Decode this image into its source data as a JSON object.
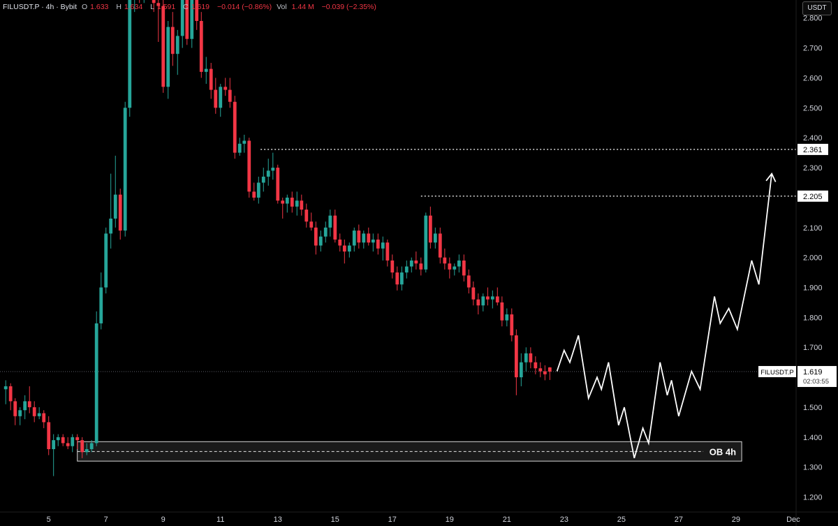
{
  "header": {
    "symbol": "FILUSDT.P · 4h · Bybit",
    "open_label": "O",
    "open": "1.633",
    "high_label": "H",
    "high": "1.634",
    "low_label": "L",
    "low": "1.591",
    "close_label": "C",
    "close": "1.619",
    "change": "−0.014 (−0.86%)",
    "vol_label": "Vol",
    "vol": "1.44 M",
    "vol_change": "−0.039 (−2.35%)"
  },
  "currency": "USDT",
  "colors": {
    "background": "#000000",
    "up": "#26a69a",
    "down": "#f23645",
    "projection": "#ffffff",
    "level_line": "#ffffff",
    "axis_text": "#d1d4dc"
  },
  "chart_data": {
    "type": "candlestick",
    "y_ticks": [
      "1.200",
      "1.300",
      "1.400",
      "1.500",
      "1.600",
      "1.700",
      "1.800",
      "1.900",
      "2.000",
      "2.100",
      "2.200",
      "2.300",
      "2.400",
      "2.500",
      "2.600",
      "2.700",
      "2.800"
    ],
    "ylim": [
      1.15,
      2.86
    ],
    "x_ticks": [
      {
        "label": "5",
        "day": 5
      },
      {
        "label": "7",
        "day": 7
      },
      {
        "label": "9",
        "day": 9
      },
      {
        "label": "11",
        "day": 11
      },
      {
        "label": "13",
        "day": 13
      },
      {
        "label": "15",
        "day": 15
      },
      {
        "label": "17",
        "day": 17
      },
      {
        "label": "19",
        "day": 19
      },
      {
        "label": "21",
        "day": 21
      },
      {
        "label": "23",
        "day": 23
      },
      {
        "label": "25",
        "day": 25
      },
      {
        "label": "27",
        "day": 27
      },
      {
        "label": "29",
        "day": 29
      },
      {
        "label": "Dec",
        "day": 31
      }
    ],
    "xlim": [
      3.3,
      31.1
    ],
    "price_labels": [
      {
        "name": "level-2361",
        "value": 2.361,
        "text": "2.361"
      },
      {
        "name": "level-2205",
        "value": 2.205,
        "text": "2.205"
      },
      {
        "name": "current-price",
        "value": 1.619,
        "text": "1.619",
        "symbol": "FILUSDT.P",
        "countdown": "02:03:55"
      }
    ],
    "levels": [
      {
        "name": "resistance-2361",
        "value": 2.361,
        "from_day": 12.4
      },
      {
        "name": "resistance-2205",
        "value": 2.205,
        "from_day": 18.0
      }
    ],
    "order_block": {
      "label": "OB 4h",
      "low": 1.32,
      "high": 1.385,
      "mid": 1.352,
      "from_day": 6.0,
      "to_day": 29.2
    },
    "projection": [
      [
        22.75,
        1.62
      ],
      [
        23.0,
        1.69
      ],
      [
        23.2,
        1.65
      ],
      [
        23.5,
        1.74
      ],
      [
        23.85,
        1.53
      ],
      [
        24.15,
        1.6
      ],
      [
        24.3,
        1.56
      ],
      [
        24.55,
        1.65
      ],
      [
        24.9,
        1.44
      ],
      [
        25.1,
        1.5
      ],
      [
        25.45,
        1.33
      ],
      [
        25.75,
        1.43
      ],
      [
        25.95,
        1.38
      ],
      [
        26.35,
        1.65
      ],
      [
        26.6,
        1.54
      ],
      [
        26.75,
        1.59
      ],
      [
        27.0,
        1.47
      ],
      [
        27.45,
        1.62
      ],
      [
        27.75,
        1.56
      ],
      [
        28.25,
        1.87
      ],
      [
        28.45,
        1.78
      ],
      [
        28.75,
        1.83
      ],
      [
        29.05,
        1.76
      ],
      [
        29.55,
        1.99
      ],
      [
        29.8,
        1.91
      ],
      [
        30.25,
        2.28
      ]
    ],
    "candles": [
      [
        3.5,
        1.56,
        1.59,
        1.51,
        1.57
      ],
      [
        3.67,
        1.57,
        1.58,
        1.49,
        1.52
      ],
      [
        3.83,
        1.52,
        1.53,
        1.44,
        1.47
      ],
      [
        4.0,
        1.47,
        1.5,
        1.44,
        1.49
      ],
      [
        4.17,
        1.49,
        1.54,
        1.46,
        1.52
      ],
      [
        4.33,
        1.52,
        1.57,
        1.48,
        1.5
      ],
      [
        4.5,
        1.5,
        1.52,
        1.45,
        1.47
      ],
      [
        4.67,
        1.47,
        1.5,
        1.46,
        1.48
      ],
      [
        4.83,
        1.48,
        1.49,
        1.43,
        1.45
      ],
      [
        5.0,
        1.45,
        1.47,
        1.34,
        1.36
      ],
      [
        5.17,
        1.36,
        1.41,
        1.27,
        1.39
      ],
      [
        5.33,
        1.39,
        1.41,
        1.37,
        1.4
      ],
      [
        5.5,
        1.4,
        1.41,
        1.37,
        1.38
      ],
      [
        5.67,
        1.38,
        1.4,
        1.36,
        1.37
      ],
      [
        5.83,
        1.37,
        1.41,
        1.35,
        1.4
      ],
      [
        6.0,
        1.4,
        1.41,
        1.36,
        1.39
      ],
      [
        6.17,
        1.39,
        1.4,
        1.33,
        1.35
      ],
      [
        6.33,
        1.35,
        1.38,
        1.34,
        1.36
      ],
      [
        6.5,
        1.36,
        1.39,
        1.35,
        1.38
      ],
      [
        6.67,
        1.38,
        1.82,
        1.37,
        1.78
      ],
      [
        6.83,
        1.78,
        1.95,
        1.76,
        1.9
      ],
      [
        7.0,
        1.9,
        2.1,
        1.88,
        2.08
      ],
      [
        7.17,
        2.08,
        2.28,
        2.03,
        2.13
      ],
      [
        7.33,
        2.13,
        2.34,
        2.1,
        2.21
      ],
      [
        7.5,
        2.21,
        2.23,
        2.06,
        2.09
      ],
      [
        7.67,
        2.09,
        2.52,
        2.07,
        2.5
      ],
      [
        7.83,
        2.5,
        2.9,
        2.47,
        2.88
      ],
      [
        8.0,
        2.88,
        2.95,
        2.82,
        2.92
      ],
      [
        8.17,
        2.92,
        2.95,
        2.85,
        2.9
      ],
      [
        8.33,
        2.9,
        2.94,
        2.85,
        2.92
      ],
      [
        8.5,
        2.92,
        2.94,
        2.86,
        2.9
      ],
      [
        8.67,
        2.9,
        2.93,
        2.82,
        2.85
      ],
      [
        8.83,
        2.85,
        2.9,
        2.72,
        2.84
      ],
      [
        9.0,
        2.84,
        2.9,
        2.55,
        2.57
      ],
      [
        9.17,
        2.57,
        2.79,
        2.53,
        2.77
      ],
      [
        9.33,
        2.77,
        2.82,
        2.64,
        2.68
      ],
      [
        9.5,
        2.68,
        2.76,
        2.61,
        2.74
      ],
      [
        9.67,
        2.74,
        2.9,
        2.7,
        2.87
      ],
      [
        9.83,
        2.87,
        2.92,
        2.71,
        2.73
      ],
      [
        10.0,
        2.73,
        2.9,
        2.7,
        2.86
      ],
      [
        10.17,
        2.86,
        2.9,
        2.76,
        2.79
      ],
      [
        10.33,
        2.79,
        2.82,
        2.6,
        2.62
      ],
      [
        10.5,
        2.62,
        2.67,
        2.58,
        2.63
      ],
      [
        10.67,
        2.63,
        2.65,
        2.53,
        2.56
      ],
      [
        10.83,
        2.56,
        2.6,
        2.48,
        2.5
      ],
      [
        11.0,
        2.5,
        2.58,
        2.47,
        2.57
      ],
      [
        11.17,
        2.57,
        2.6,
        2.54,
        2.56
      ],
      [
        11.33,
        2.56,
        2.6,
        2.5,
        2.52
      ],
      [
        11.5,
        2.52,
        2.54,
        2.33,
        2.35
      ],
      [
        11.67,
        2.35,
        2.4,
        2.34,
        2.38
      ],
      [
        11.83,
        2.38,
        2.41,
        2.35,
        2.39
      ],
      [
        12.0,
        2.39,
        2.4,
        2.2,
        2.22
      ],
      [
        12.17,
        2.22,
        2.25,
        2.19,
        2.2
      ],
      [
        12.33,
        2.2,
        2.27,
        2.18,
        2.25
      ],
      [
        12.5,
        2.25,
        2.3,
        2.22,
        2.27
      ],
      [
        12.67,
        2.27,
        2.33,
        2.24,
        2.29
      ],
      [
        12.83,
        2.29,
        2.35,
        2.26,
        2.3
      ],
      [
        13.0,
        2.3,
        2.31,
        2.18,
        2.19
      ],
      [
        13.17,
        2.19,
        2.2,
        2.13,
        2.18
      ],
      [
        13.33,
        2.18,
        2.21,
        2.15,
        2.2
      ],
      [
        13.5,
        2.2,
        2.22,
        2.15,
        2.17
      ],
      [
        13.67,
        2.17,
        2.22,
        2.14,
        2.19
      ],
      [
        13.83,
        2.19,
        2.21,
        2.14,
        2.16
      ],
      [
        14.0,
        2.16,
        2.18,
        2.1,
        2.12
      ],
      [
        14.17,
        2.12,
        2.15,
        2.09,
        2.1
      ],
      [
        14.33,
        2.1,
        2.12,
        2.01,
        2.04
      ],
      [
        14.5,
        2.04,
        2.09,
        2.02,
        2.07
      ],
      [
        14.67,
        2.07,
        2.12,
        2.05,
        2.1
      ],
      [
        14.83,
        2.1,
        2.16,
        2.07,
        2.14
      ],
      [
        15.0,
        2.14,
        2.16,
        2.05,
        2.06
      ],
      [
        15.17,
        2.06,
        2.08,
        2.02,
        2.04
      ],
      [
        15.33,
        2.04,
        2.06,
        1.98,
        2.02
      ],
      [
        15.5,
        2.02,
        2.05,
        2.0,
        2.04
      ],
      [
        15.67,
        2.04,
        2.1,
        2.02,
        2.09
      ],
      [
        15.83,
        2.09,
        2.11,
        2.03,
        2.05
      ],
      [
        16.0,
        2.05,
        2.09,
        2.03,
        2.08
      ],
      [
        16.17,
        2.08,
        2.1,
        2.04,
        2.05
      ],
      [
        16.33,
        2.05,
        2.08,
        2.02,
        2.06
      ],
      [
        16.5,
        2.06,
        2.08,
        2.01,
        2.03
      ],
      [
        16.67,
        2.03,
        2.07,
        1.99,
        2.05
      ],
      [
        16.83,
        2.05,
        2.06,
        1.97,
        1.99
      ],
      [
        17.0,
        1.99,
        2.01,
        1.93,
        1.95
      ],
      [
        17.17,
        1.95,
        1.97,
        1.89,
        1.91
      ],
      [
        17.33,
        1.91,
        1.97,
        1.89,
        1.95
      ],
      [
        17.5,
        1.95,
        1.99,
        1.93,
        1.97
      ],
      [
        17.67,
        1.97,
        2.0,
        1.95,
        1.99
      ],
      [
        17.83,
        1.99,
        2.02,
        1.96,
        1.98
      ],
      [
        18.0,
        1.98,
        2.0,
        1.94,
        1.96
      ],
      [
        18.17,
        1.96,
        2.15,
        1.95,
        2.14
      ],
      [
        18.33,
        2.14,
        2.17,
        2.03,
        2.05
      ],
      [
        18.5,
        2.05,
        2.1,
        2.03,
        2.08
      ],
      [
        18.67,
        2.08,
        2.1,
        1.98,
        2.0
      ],
      [
        18.83,
        2.0,
        2.03,
        1.96,
        1.98
      ],
      [
        19.0,
        1.98,
        2.0,
        1.93,
        1.96
      ],
      [
        19.17,
        1.96,
        1.98,
        1.94,
        1.97
      ],
      [
        19.33,
        1.97,
        2.01,
        1.95,
        1.99
      ],
      [
        19.5,
        1.99,
        2.01,
        1.92,
        1.94
      ],
      [
        19.67,
        1.94,
        1.96,
        1.88,
        1.9
      ],
      [
        19.83,
        1.9,
        1.92,
        1.84,
        1.86
      ],
      [
        20.0,
        1.86,
        1.88,
        1.81,
        1.84
      ],
      [
        20.17,
        1.84,
        1.88,
        1.82,
        1.87
      ],
      [
        20.33,
        1.87,
        1.9,
        1.84,
        1.86
      ],
      [
        20.5,
        1.86,
        1.89,
        1.83,
        1.87
      ],
      [
        20.67,
        1.87,
        1.9,
        1.84,
        1.85
      ],
      [
        20.83,
        1.85,
        1.87,
        1.77,
        1.79
      ],
      [
        21.0,
        1.79,
        1.83,
        1.77,
        1.81
      ],
      [
        21.17,
        1.81,
        1.83,
        1.72,
        1.74
      ],
      [
        21.33,
        1.74,
        1.76,
        1.54,
        1.6
      ],
      [
        21.5,
        1.6,
        1.68,
        1.57,
        1.65
      ],
      [
        21.67,
        1.65,
        1.7,
        1.62,
        1.68
      ],
      [
        21.83,
        1.68,
        1.7,
        1.63,
        1.65
      ],
      [
        22.0,
        1.65,
        1.67,
        1.61,
        1.63
      ],
      [
        22.17,
        1.63,
        1.65,
        1.6,
        1.62
      ],
      [
        22.33,
        1.62,
        1.64,
        1.59,
        1.61
      ],
      [
        22.5,
        1.633,
        1.634,
        1.591,
        1.619
      ]
    ]
  }
}
